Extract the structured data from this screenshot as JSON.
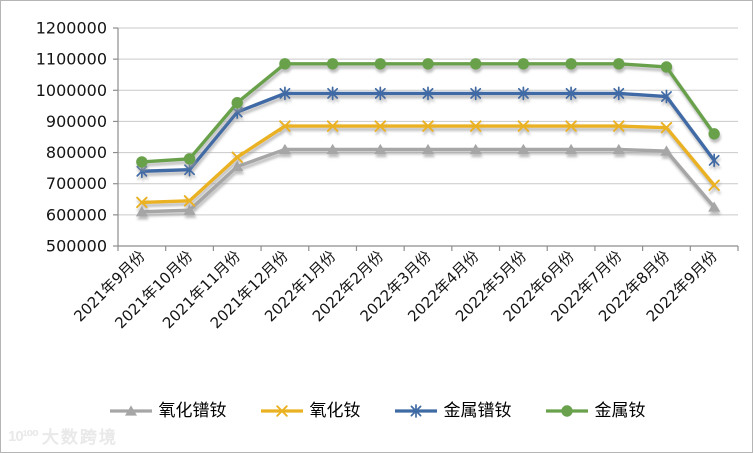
{
  "watermark": {
    "logo": "10¹⁰⁰",
    "text": "大数跨境"
  },
  "chart_data": {
    "type": "line",
    "title": "",
    "xlabel": "",
    "ylabel": "",
    "ylim": [
      500000,
      1200000
    ],
    "ytick_step": 100000,
    "y_ticks": [
      "500000",
      "600000",
      "700000",
      "800000",
      "900000",
      "1000000",
      "1100000",
      "1200000"
    ],
    "grid": true,
    "legend_position": "bottom",
    "categories": [
      "2021年9月份",
      "2021年10月份",
      "2021年11月份",
      "2021年12月份",
      "2022年1月份",
      "2022年2月份",
      "2022年3月份",
      "2022年4月份",
      "2022年5月份",
      "2022年6月份",
      "2022年7月份",
      "2022年8月份",
      "2022年9月份"
    ],
    "series": [
      {
        "name": "氧化镨钕",
        "color": "#A6A6A6",
        "marker": "triangle",
        "values": [
          610000,
          615000,
          755000,
          810000,
          810000,
          810000,
          810000,
          810000,
          810000,
          810000,
          810000,
          805000,
          625000
        ]
      },
      {
        "name": "氧化钕",
        "color": "#EAB223",
        "marker": "x",
        "values": [
          640000,
          645000,
          785000,
          885000,
          885000,
          885000,
          885000,
          885000,
          885000,
          885000,
          885000,
          880000,
          695000
        ]
      },
      {
        "name": "金属镨钕",
        "color": "#3F6BA5",
        "marker": "asterisk",
        "values": [
          740000,
          745000,
          930000,
          990000,
          990000,
          990000,
          990000,
          990000,
          990000,
          990000,
          990000,
          980000,
          775000
        ]
      },
      {
        "name": "金属钕",
        "color": "#69A14C",
        "marker": "circle",
        "values": [
          770000,
          780000,
          960000,
          1085000,
          1085000,
          1085000,
          1085000,
          1085000,
          1085000,
          1085000,
          1085000,
          1075000,
          860000
        ]
      }
    ]
  }
}
